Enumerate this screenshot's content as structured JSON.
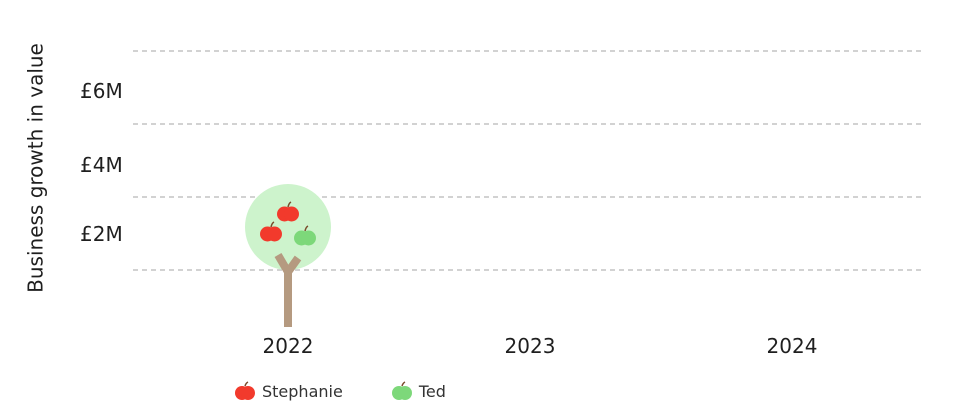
{
  "chart_data": {
    "type": "scatter",
    "title": "",
    "xlabel": "",
    "ylabel": "Business growth in value",
    "categories": [
      "2022",
      "2023",
      "2024"
    ],
    "ytick_labels": [
      "£2M",
      "£4M",
      "£6M"
    ],
    "grid": true,
    "legend_position": "bottom-left",
    "series": [
      {
        "name": "Stephanie",
        "color": "#f23a2c",
        "icon": "red-apple-icon"
      },
      {
        "name": "Ted",
        "color": "#7dd87a",
        "icon": "green-apple-icon"
      }
    ],
    "trees": [
      {
        "category": "2022",
        "canopy_color": "#cdf3cc",
        "trunk_color": "#b59a80",
        "apples": [
          {
            "series": "Stephanie"
          },
          {
            "series": "Stephanie"
          },
          {
            "series": "Ted"
          }
        ]
      }
    ]
  }
}
